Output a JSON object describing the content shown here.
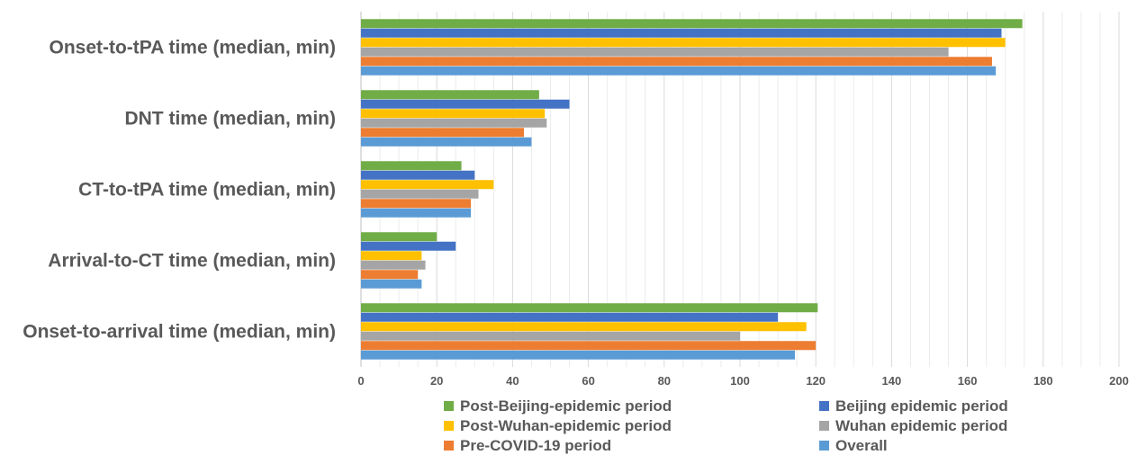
{
  "chart_data": {
    "type": "bar",
    "orientation": "horizontal",
    "title": "",
    "xlabel": "",
    "ylabel": "",
    "xlim": [
      0,
      200
    ],
    "x_ticks": [
      0,
      20,
      40,
      60,
      80,
      100,
      120,
      140,
      160,
      180,
      200
    ],
    "minor_grid_step": 5,
    "grid": true,
    "legend_position": "bottom",
    "categories": [
      "Onset-to-tPA time (median, min)",
      "DNT time (median, min)",
      "CT-to-tPA time (median, min)",
      "Arrival-to-CT time (median, min)",
      "Onset-to-arrival time (median, min)"
    ],
    "series": [
      {
        "name": "Post-Beijing-epidemic period",
        "color": "#70AD47",
        "values": [
          174.5,
          47,
          26.5,
          20,
          120.5
        ]
      },
      {
        "name": "Beijing epidemic period",
        "color": "#4472C4",
        "values": [
          169,
          55,
          30,
          25,
          110
        ]
      },
      {
        "name": "Post-Wuhan-epidemic period",
        "color": "#FFC000",
        "values": [
          170,
          48.5,
          35,
          16,
          117.5
        ]
      },
      {
        "name": "Wuhan epidemic period",
        "color": "#A5A5A5",
        "values": [
          155,
          49,
          31,
          17,
          100
        ]
      },
      {
        "name": "Pre-COVID-19 period",
        "color": "#ED7D31",
        "values": [
          166.5,
          43,
          29,
          15,
          120
        ]
      },
      {
        "name": "Overall",
        "color": "#5B9BD5",
        "values": [
          167.5,
          45,
          29,
          16,
          114.5
        ]
      }
    ]
  }
}
